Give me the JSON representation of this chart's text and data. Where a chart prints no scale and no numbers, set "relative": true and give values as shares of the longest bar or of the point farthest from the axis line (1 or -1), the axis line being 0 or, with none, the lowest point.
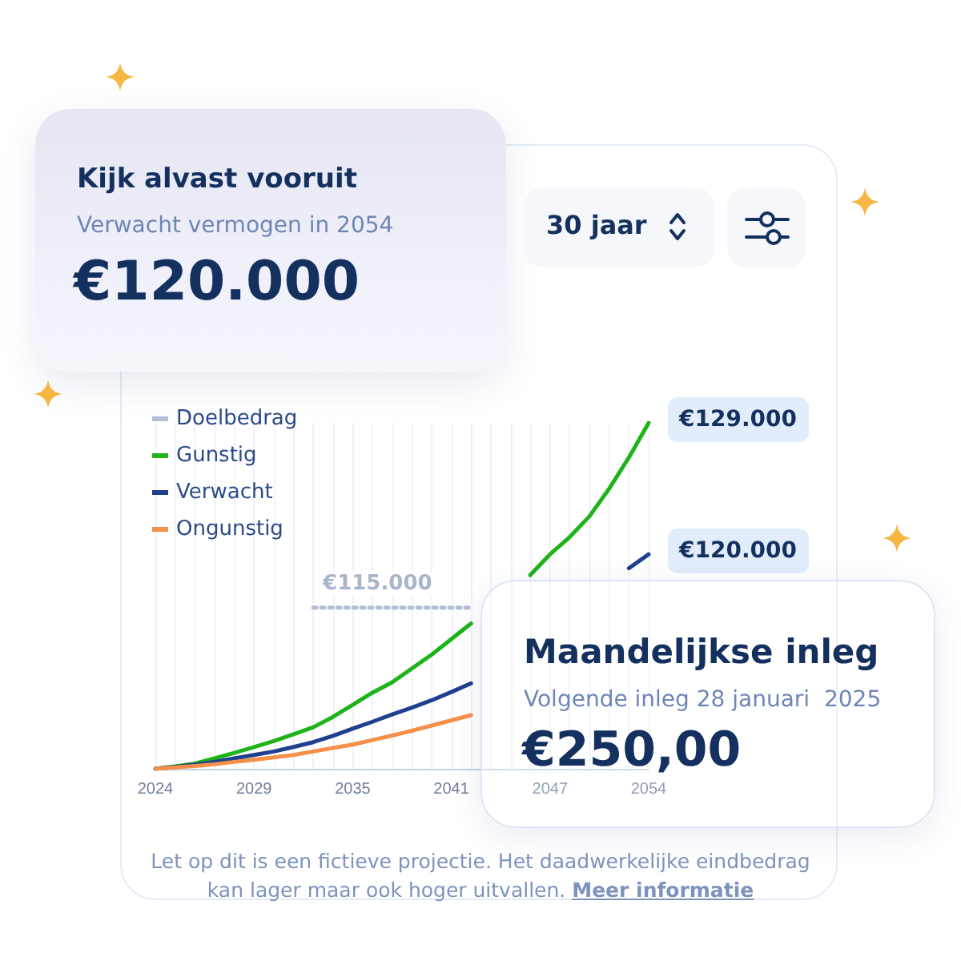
{
  "chart_data": {
    "type": "line",
    "relative": true,
    "title": "Kijk alvast vooruit",
    "categories": [
      "2024",
      null,
      null,
      null,
      null,
      "2029",
      null,
      null,
      null,
      null,
      "2035",
      null,
      null,
      null,
      null,
      "2041",
      null,
      null,
      null,
      null,
      "2047",
      null,
      null,
      null,
      null,
      "2054"
    ],
    "series": [
      {
        "name": "Doelbedrag",
        "color": "#b3bfd3",
        "line_style": "dotted",
        "values": [
          null,
          null,
          null,
          null,
          null,
          null,
          null,
          null,
          0.466,
          0.466,
          0.466,
          0.466,
          0.466,
          0.466,
          0.466,
          0.466,
          0.466,
          null,
          null,
          null,
          null,
          null,
          null,
          null,
          null,
          null
        ]
      },
      {
        "name": "Gunstig",
        "color": "#1fb31a",
        "values": [
          0,
          0.007,
          0.015,
          0.03,
          0.046,
          0.063,
          0.08,
          0.1,
          0.12,
          0.15,
          0.185,
          0.22,
          0.25,
          0.29,
          0.33,
          0.375,
          0.42,
          null,
          null,
          0.56,
          0.62,
          0.67,
          0.73,
          0.81,
          0.9,
          1
        ]
      },
      {
        "name": "Verwacht",
        "color": "#1f3f8f",
        "values": [
          0,
          0.005,
          0.012,
          0.02,
          0.03,
          0.04,
          0.05,
          0.063,
          0.077,
          0.095,
          0.116,
          0.136,
          0.157,
          0.177,
          0.198,
          0.222,
          0.247,
          null,
          null,
          null,
          null,
          null,
          null,
          null,
          0.58,
          0.62
        ]
      },
      {
        "name": "Ongunstig",
        "color": "#f4904a",
        "values": [
          0,
          0.004,
          0.008,
          0.013,
          0.02,
          0.026,
          0.033,
          0.04,
          0.05,
          0.06,
          0.07,
          0.083,
          0.096,
          0.11,
          0.125,
          0.14,
          0.155,
          null,
          null,
          null,
          null,
          null,
          null,
          null,
          null,
          null
        ]
      }
    ],
    "legend": "top left",
    "grid": "x",
    "annotations": [
      "Verwacht vermogen in 2054",
      "€120.000",
      "30 jaar",
      "Maandelijkse inleg",
      "Volgende inleg 28 januari  2025",
      "€250,00",
      "Let op dit is een fictieve projectie. Het daadwerkelijke eindbedrag kan lager maar ook hoger uitvallen.",
      "Meer informatie",
      {
        "text": "€115.000",
        "y": 0.466
      },
      {
        "text": "€129.000",
        "x": "2054",
        "y": 1
      },
      {
        "text": "€120.000",
        "x": "2054",
        "y": 0.62
      }
    ]
  }
}
